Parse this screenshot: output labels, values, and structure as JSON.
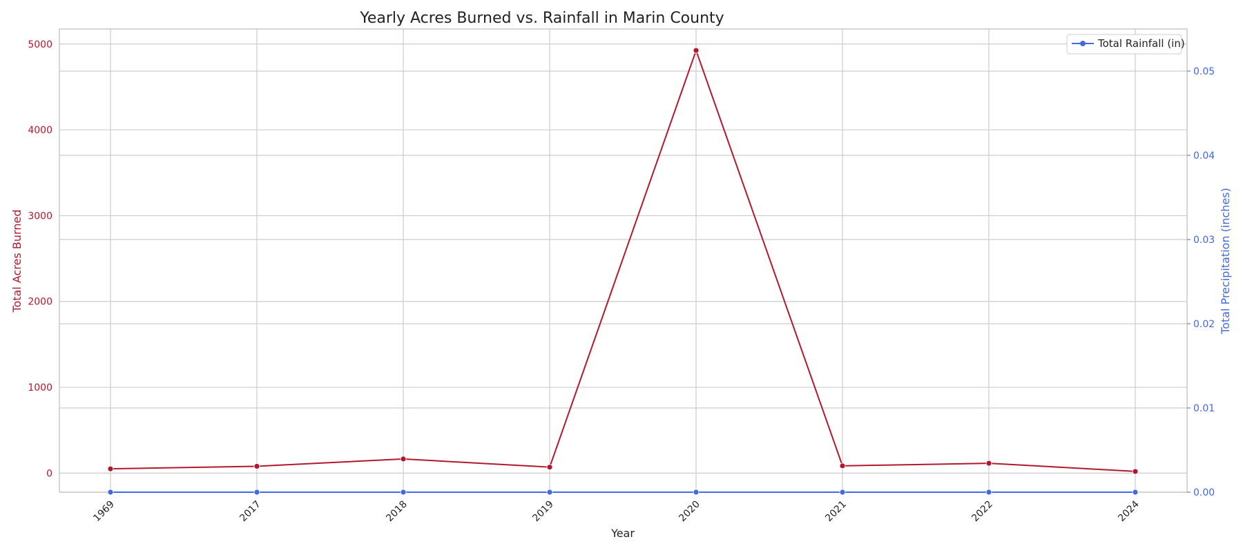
{
  "chart_data": {
    "type": "line",
    "title": "Yearly Acres Burned vs. Rainfall in Marin County",
    "xlabel": "Year",
    "ylabel_left": "Total Acres Burned",
    "ylabel_right": "Total Precipitation (inches)",
    "categories": [
      "1969",
      "2017",
      "2018",
      "2019",
      "2020",
      "2021",
      "2022",
      "2024"
    ],
    "left_axis": {
      "min": -222,
      "max": 5175,
      "ticks": [
        0,
        1000,
        2000,
        3000,
        4000,
        5000
      ],
      "tick_labels": [
        "0",
        "1000",
        "2000",
        "3000",
        "4000",
        "5000"
      ]
    },
    "right_axis": {
      "min": 0,
      "max": 0.055,
      "ticks": [
        0,
        0.01,
        0.02,
        0.03,
        0.04,
        0.05
      ],
      "tick_labels": [
        "0.00",
        "0.01",
        "0.02",
        "0.03",
        "0.04",
        "0.05"
      ]
    },
    "series": [
      {
        "axis": "left",
        "color": "#b2182b",
        "values": [
          50,
          80,
          165,
          70,
          4925,
          85,
          115,
          20
        ]
      },
      {
        "name": "Total Rainfall (in)",
        "axis": "right",
        "color": "#4169e1",
        "values": [
          0,
          0,
          0,
          0,
          0,
          0,
          0,
          0
        ]
      }
    ],
    "legend": {
      "placement": "top-right",
      "entries": [
        "Total Rainfall (in)"
      ]
    },
    "grid": true,
    "colors": {
      "left_axis": "#b2182b",
      "right_axis": "#4169e1",
      "grid": "#cccccc",
      "spine": "#c8c8c8",
      "text": "#222222"
    }
  }
}
